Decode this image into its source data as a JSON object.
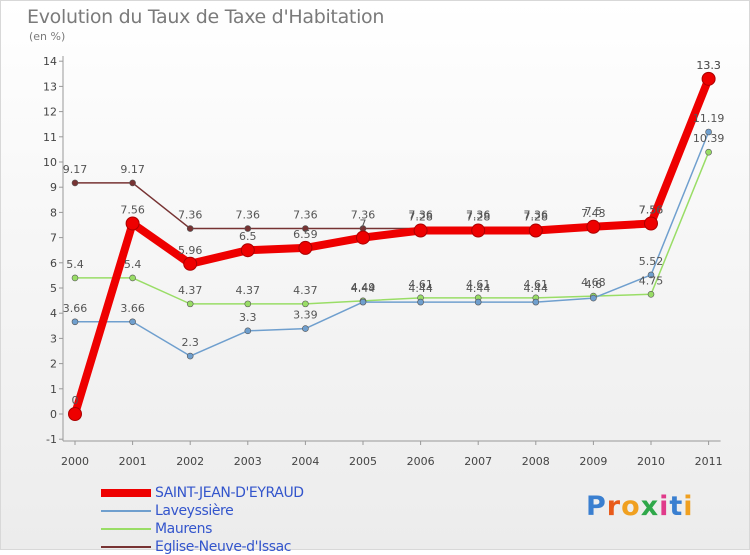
{
  "chart_data": {
    "type": "line",
    "title": "Evolution du Taux de Taxe d'Habitation",
    "subtitle": "(en %)",
    "xlabel": "",
    "ylabel": "",
    "x": [
      "2000",
      "2001",
      "2002",
      "2003",
      "2004",
      "2005",
      "2006",
      "2007",
      "2008",
      "2009",
      "2010",
      "2011"
    ],
    "ylim": [
      -1,
      14
    ],
    "yticks": [
      "-1",
      "0",
      "1",
      "2",
      "3",
      "4",
      "5",
      "6",
      "7",
      "8",
      "9",
      "10",
      "11",
      "12",
      "13",
      "14"
    ],
    "grid": false,
    "legend_position": "bottom-left",
    "series": [
      {
        "name": "SAINT-JEAN-D'EYRAUD",
        "color": "#ee0000",
        "values": [
          0,
          7.56,
          5.96,
          6.5,
          6.59,
          7.0,
          7.28,
          7.28,
          7.28,
          7.43,
          7.56,
          13.3
        ],
        "labels": [
          "0",
          "7.56",
          "5.96",
          "6.5",
          "6.59",
          "7",
          "7.28",
          "7.28",
          "7.28",
          "7.43",
          "7.56",
          "13.3"
        ]
      },
      {
        "name": "Laveyssière",
        "color": "#6f9fce",
        "values": [
          3.66,
          3.66,
          2.3,
          3.3,
          3.39,
          4.44,
          4.44,
          4.44,
          4.44,
          4.6,
          5.52,
          11.19
        ],
        "labels": [
          "3.66",
          "3.66",
          "2.3",
          "3.3",
          "3.39",
          "4.44",
          "4.44",
          "4.44",
          "4.44",
          "4.6",
          "5.52",
          "11.19"
        ]
      },
      {
        "name": "Maurens",
        "color": "#99dd66",
        "values": [
          5.4,
          5.4,
          4.37,
          4.37,
          4.37,
          4.49,
          4.61,
          4.61,
          4.61,
          4.68,
          4.75,
          10.39
        ],
        "labels": [
          "5.4",
          "5.4",
          "4.37",
          "4.37",
          "4.37",
          "4.49",
          "4.61",
          "4.61",
          "4.61",
          "4.68",
          "4.75",
          "10.39"
        ]
      },
      {
        "name": "Eglise-Neuve-d'Issac",
        "color": "#773333",
        "values": [
          9.17,
          9.17,
          7.36,
          7.36,
          7.36,
          7.36,
          7.36,
          7.36,
          7.36,
          7.5,
          7.56,
          13.3
        ],
        "labels": [
          "9.17",
          "9.17",
          "7.36",
          "7.36",
          "7.36",
          "7.36",
          "7.36",
          "7.36",
          "7.36",
          "7.5",
          "7.56",
          "13.3"
        ]
      }
    ]
  },
  "legend": [
    {
      "label": "SAINT-JEAN-D'EYRAUD",
      "color": "#ee0000",
      "width": 8
    },
    {
      "label": "Laveyssière",
      "color": "#6f9fce",
      "width": 2
    },
    {
      "label": "Maurens",
      "color": "#99dd66",
      "width": 2
    },
    {
      "label": "Eglise-Neuve-d'Issac",
      "color": "#773333",
      "width": 2
    }
  ],
  "brand": {
    "text": "Proxiti",
    "colors": [
      "#3a7fd0",
      "#e85a1a",
      "#f0a020",
      "#2fa84a",
      "#e03a8a",
      "#3a7fd0",
      "#f0a020"
    ]
  }
}
